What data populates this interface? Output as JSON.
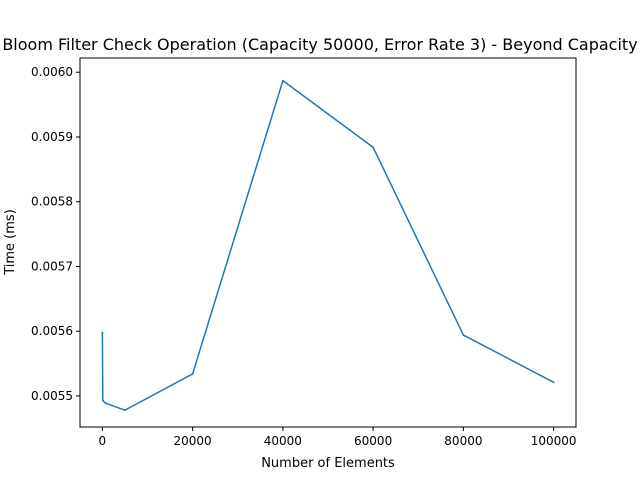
{
  "chart_data": {
    "type": "line",
    "title": "Bloom Filter Check Operation (Capacity 50000, Error Rate 3) - Beyond Capacity",
    "xlabel": "Number of Elements",
    "ylabel": "Time (ms)",
    "xlim": [
      -4950,
      104950
    ],
    "ylim": [
      0.005452,
      0.006022
    ],
    "xticks": [
      {
        "value": 0,
        "label": "0"
      },
      {
        "value": 20000,
        "label": "20000"
      },
      {
        "value": 40000,
        "label": "40000"
      },
      {
        "value": 60000,
        "label": "60000"
      },
      {
        "value": 80000,
        "label": "80000"
      },
      {
        "value": 100000,
        "label": "100000"
      }
    ],
    "yticks": [
      {
        "value": 0.0055,
        "label": "0.0055"
      },
      {
        "value": 0.0056,
        "label": "0.0056"
      },
      {
        "value": 0.0057,
        "label": "0.0057"
      },
      {
        "value": 0.0058,
        "label": "0.0058"
      },
      {
        "value": 0.0059,
        "label": "0.0059"
      },
      {
        "value": 0.006,
        "label": "0.0060"
      }
    ],
    "grid": false,
    "series": [
      {
        "color": "#1f77b4",
        "x": [
          10,
          100,
          500,
          1000,
          5000,
          20000,
          40000,
          60000,
          80000,
          100000
        ],
        "y": [
          0.005598,
          0.005493,
          0.00549,
          0.005488,
          0.005478,
          0.005534,
          0.005987,
          0.005884,
          0.005594,
          0.005521
        ]
      }
    ]
  }
}
